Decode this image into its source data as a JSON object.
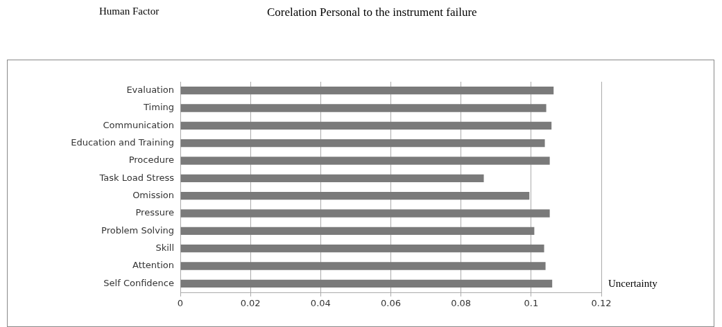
{
  "chart_data": {
    "type": "bar",
    "orientation": "horizontal",
    "title": "Corelation Personal to the instrument failure",
    "annotations": [
      "Human Factor"
    ],
    "xlabel": "Uncertainty",
    "categories": [
      "Evaluation",
      "Timing",
      "Communication",
      "Education and Training",
      "Procedure",
      "Task Load Stress",
      "Omission",
      "Pressure",
      "Problem Solving",
      "Skill",
      "Attention",
      "Self Confidence"
    ],
    "values": [
      0.1064,
      0.1043,
      0.1058,
      0.1039,
      0.1053,
      0.0865,
      0.0995,
      0.1053,
      0.1009,
      0.1037,
      0.1041,
      0.106
    ],
    "color": "#7a7a7a",
    "xlim": [
      0,
      0.12
    ],
    "xticks": [
      0,
      0.02,
      0.04,
      0.06,
      0.08,
      0.1,
      0.12
    ],
    "grid": "x",
    "legend": false
  }
}
